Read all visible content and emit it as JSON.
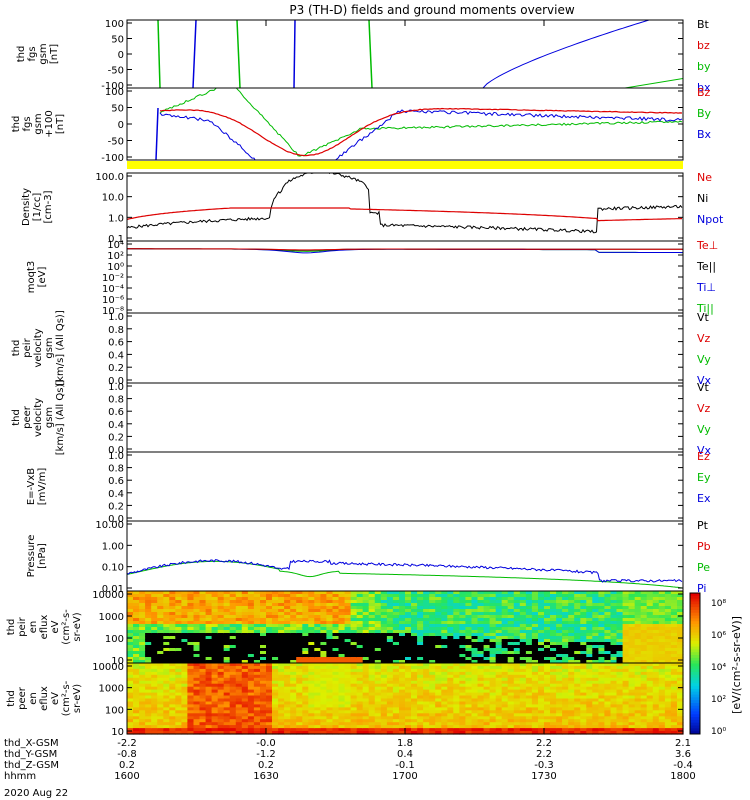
{
  "chart_data": {
    "type": "line",
    "title": "P3 (TH-D) fields and ground moments overview",
    "date_label": "2020 Aug 22",
    "x_axis": {
      "times": [
        "1600",
        "1630",
        "1700",
        "1730",
        "1800"
      ],
      "rows": [
        {
          "label": "thd_X-GSM",
          "values": [
            "-2.2",
            "-0.0",
            "1.8",
            "2.2",
            "2.1"
          ]
        },
        {
          "label": "thd_Y-GSM",
          "values": [
            "-0.8",
            "-1.2",
            "0.4",
            "2.2",
            "3.6"
          ]
        },
        {
          "label": "thd_Z-GSM",
          "values": [
            "0.2",
            "0.2",
            "-0.1",
            "-0.3",
            "-0.4"
          ]
        },
        {
          "label": "hhmm",
          "values": [
            "1600",
            "1630",
            "1700",
            "1730",
            "1800"
          ]
        }
      ]
    },
    "panels": [
      {
        "id": "fgs",
        "ylabel": [
          "thd",
          "fgs",
          "gsm",
          "[nT]"
        ],
        "ticks": [
          "100",
          "50",
          "0",
          "-50",
          "-100"
        ],
        "legend": [
          {
            "label": "Bt",
            "color": "#000000"
          },
          {
            "label": "bz",
            "color": "#dd0000"
          },
          {
            "label": "by",
            "color": "#00bb00"
          },
          {
            "label": "bx",
            "color": "#0000dd"
          }
        ]
      },
      {
        "id": "fgs_avg",
        "ylabel": [
          "thd",
          "fgs",
          "gsm",
          "+100",
          "[nT]"
        ],
        "ticks": [
          "100",
          "50",
          "0",
          "-50",
          "-100"
        ],
        "legend": [
          {
            "label": "Bz",
            "color": "#dd0000"
          },
          {
            "label": "By",
            "color": "#00bb00"
          },
          {
            "label": "Bx",
            "color": "#0000dd"
          }
        ]
      },
      {
        "id": "density",
        "ylabel": [
          "Density",
          "[1/cc]",
          "[cm-3]"
        ],
        "ticks": [
          "100.0",
          "10.0",
          "1.0",
          "0.1"
        ],
        "legend": [
          {
            "label": "Ne",
            "color": "#dd0000"
          },
          {
            "label": "Ni",
            "color": "#000000"
          },
          {
            "label": "Npot",
            "color": "#0000dd"
          }
        ]
      },
      {
        "id": "temp",
        "ylabel": [
          "moqt3",
          "[eV]"
        ],
        "ticks": [
          "10⁴",
          "10²",
          "10⁰",
          "10⁻²",
          "10⁻⁴",
          "10⁻⁶",
          "10⁻⁸"
        ],
        "legend": [
          {
            "label": "Te⊥",
            "color": "#dd0000"
          },
          {
            "label": "Te||",
            "color": "#000000"
          },
          {
            "label": "Ti⊥",
            "color": "#0000dd"
          },
          {
            "label": "Ti||",
            "color": "#00bb00"
          }
        ]
      },
      {
        "id": "peir_v",
        "ylabel": [
          "thd",
          "peir",
          "velocity",
          "gsm",
          "[km/s] (All Qs)]"
        ],
        "ticks": [
          "1.0",
          "0.8",
          "0.6",
          "0.4",
          "0.2",
          "0.0"
        ],
        "legend": [
          {
            "label": "Vt",
            "color": "#000000"
          },
          {
            "label": "Vz",
            "color": "#dd0000"
          },
          {
            "label": "Vy",
            "color": "#00bb00"
          },
          {
            "label": "Vx",
            "color": "#0000dd"
          }
        ]
      },
      {
        "id": "peer_v",
        "ylabel": [
          "thd",
          "peer",
          "velocity",
          "gsm",
          "[km/s] (All Qs)]"
        ],
        "ticks": [
          "1.0",
          "0.8",
          "0.6",
          "0.4",
          "0.2",
          "0.0"
        ],
        "legend": [
          {
            "label": "Vt",
            "color": "#000000"
          },
          {
            "label": "Vz",
            "color": "#dd0000"
          },
          {
            "label": "Vy",
            "color": "#00bb00"
          },
          {
            "label": "Vx",
            "color": "#0000dd"
          }
        ]
      },
      {
        "id": "efield",
        "ylabel": [
          "E=-VxB",
          "[mV/m]"
        ],
        "ticks": [
          "1.0",
          "0.8",
          "0.6",
          "0.4",
          "0.2",
          "0.0"
        ],
        "legend": [
          {
            "label": "Ez",
            "color": "#dd0000"
          },
          {
            "label": "Ey",
            "color": "#00bb00"
          },
          {
            "label": "Ex",
            "color": "#0000dd"
          }
        ]
      },
      {
        "id": "pressure",
        "ylabel": [
          "Pressure",
          "[nPa]"
        ],
        "ticks": [
          "10.00",
          "1.00",
          "0.10",
          "0.01"
        ],
        "legend": [
          {
            "label": "Pt",
            "color": "#000000"
          },
          {
            "label": "Pb",
            "color": "#dd0000"
          },
          {
            "label": "Pe",
            "color": "#00bb00"
          },
          {
            "label": "Pi",
            "color": "#0000dd"
          }
        ]
      },
      {
        "id": "peir_spec",
        "ylabel": [
          "thd",
          "peir",
          "en",
          "eflux",
          "eV",
          "(cm²-s-",
          "sr-eV)"
        ],
        "ticks": [
          "10000",
          "1000",
          "100",
          "10"
        ],
        "legend": []
      },
      {
        "id": "peer_spec",
        "ylabel": [
          "thd",
          "peer",
          "en",
          "eflux",
          "eV",
          "(cm²-s-",
          "sr-eV)"
        ],
        "ticks": [
          "10000",
          "1000",
          "100",
          "10"
        ],
        "legend": []
      }
    ],
    "colorbar": {
      "label": "[eV/(cm²-s-sr-eV)]",
      "ticks": [
        "10⁸",
        "10⁶",
        "10⁴",
        "10²",
        "10⁰"
      ]
    }
  }
}
